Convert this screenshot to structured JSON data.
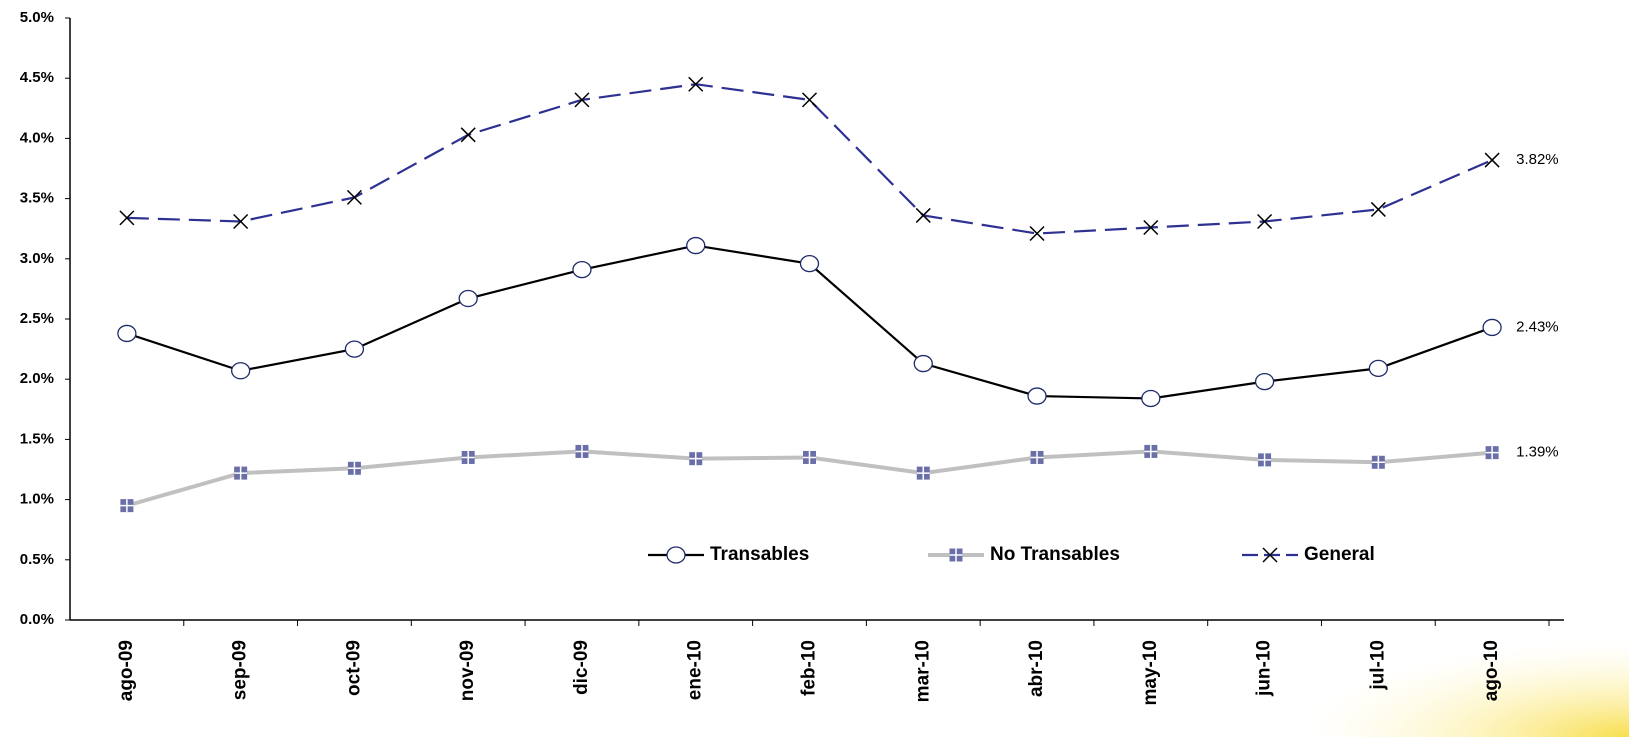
{
  "chart_data": {
    "type": "line",
    "categories": [
      "ago-09",
      "sep-09",
      "oct-09",
      "nov-09",
      "dic-09",
      "ene-10",
      "feb-10",
      "mar-10",
      "abr-10",
      "may-10",
      "jun-10",
      "jul-10",
      "ago-10"
    ],
    "series": [
      {
        "name": "Transables",
        "color": "#000000",
        "marker": "circle",
        "values": [
          2.38,
          2.07,
          2.25,
          2.67,
          2.91,
          3.11,
          2.96,
          2.13,
          1.86,
          1.84,
          1.98,
          2.09,
          2.43
        ],
        "value_labels": [
          null,
          null,
          null,
          null,
          null,
          null,
          null,
          null,
          null,
          null,
          null,
          null,
          "2.43%"
        ]
      },
      {
        "name": "No Transables",
        "color": "#c0c0c0",
        "marker": "square",
        "values": [
          0.95,
          1.22,
          1.26,
          1.35,
          1.4,
          1.34,
          1.35,
          1.22,
          1.35,
          1.4,
          1.33,
          1.31,
          1.39
        ],
        "value_labels": [
          null,
          null,
          null,
          null,
          null,
          null,
          null,
          null,
          null,
          null,
          null,
          null,
          "1.39%"
        ]
      },
      {
        "name": "General",
        "color": "#2e3192",
        "marker": "x",
        "dash": true,
        "values": [
          3.34,
          3.31,
          3.51,
          4.03,
          4.32,
          4.45,
          4.32,
          3.36,
          3.21,
          3.26,
          3.31,
          3.41,
          3.82
        ],
        "value_labels": [
          null,
          null,
          null,
          null,
          null,
          null,
          null,
          null,
          null,
          null,
          null,
          null,
          "3.82%"
        ]
      }
    ],
    "ylim": [
      0,
      5
    ],
    "yticks": [
      {
        "value": 0,
        "label": "0.0%"
      },
      {
        "value": 0.5,
        "label": "0.5%"
      },
      {
        "value": 1,
        "label": "1.0%"
      },
      {
        "value": 1.5,
        "label": "1.5%"
      },
      {
        "value": 2,
        "label": "2.0%"
      },
      {
        "value": 2.5,
        "label": "2.5%"
      },
      {
        "value": 3,
        "label": "3.0%"
      },
      {
        "value": 3.5,
        "label": "3.5%"
      },
      {
        "value": 4,
        "label": "4.0%"
      },
      {
        "value": 4.5,
        "label": "4.5%"
      },
      {
        "value": 5,
        "label": "5.0%"
      }
    ],
    "grid": false,
    "legend": "bottom"
  }
}
